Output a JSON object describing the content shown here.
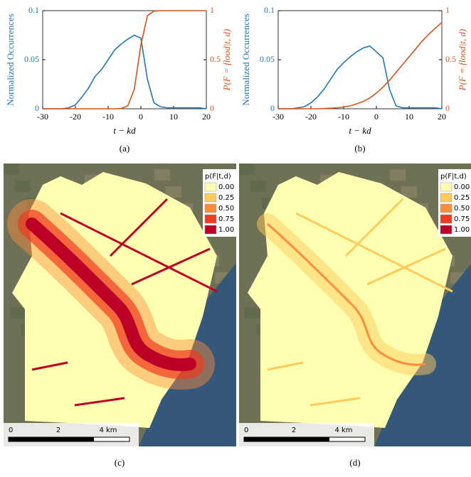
{
  "chart_data": [
    {
      "type": "line",
      "caption": "(a)",
      "xlabel": "t − kd",
      "ylabel": "Normalized Occurrences",
      "y2label": "P(F = flood|t, d)",
      "x": [
        -30,
        -28,
        -26,
        -24,
        -22,
        -20,
        -18,
        -16,
        -14,
        -12,
        -10,
        -8,
        -6,
        -4,
        -2,
        0,
        2,
        4,
        6,
        8,
        10,
        12,
        14,
        16,
        18,
        20
      ],
      "series": [
        {
          "color": "#1f77b4",
          "values": [
            0,
            0,
            0,
            0,
            0.001,
            0.004,
            0.012,
            0.021,
            0.033,
            0.04,
            0.05,
            0.06,
            0.066,
            0.071,
            0.075,
            0.072,
            0.03,
            0.006,
            0.002,
            0.001,
            0.001,
            0.001,
            0.001,
            0.001,
            0.001,
            0
          ]
        },
        {
          "color": "#d95319",
          "axis": "y2",
          "values": [
            0,
            0,
            0,
            0,
            0,
            0,
            0,
            0,
            0,
            0,
            0,
            0,
            0.003,
            0.03,
            0.2,
            0.65,
            0.95,
            0.995,
            1,
            1,
            1,
            1,
            1,
            1,
            1,
            1
          ]
        }
      ],
      "xlim": [
        -30,
        20
      ],
      "xticks": [
        -30,
        -20,
        -10,
        0,
        10,
        20
      ],
      "ylim": [
        0,
        0.1
      ],
      "yticks": [
        0,
        0.05,
        0.1
      ],
      "y2lim": [
        0,
        1
      ],
      "y2ticks": [
        0,
        0.5,
        1
      ]
    },
    {
      "type": "line",
      "caption": "(b)",
      "xlabel": "t − kd",
      "ylabel": "Normalized Occurrences",
      "y2label": "P(F = flood|t, d)",
      "x": [
        -30,
        -28,
        -26,
        -24,
        -22,
        -20,
        -18,
        -16,
        -14,
        -12,
        -10,
        -8,
        -6,
        -4,
        -2,
        0,
        2,
        4,
        6,
        8,
        10,
        12,
        14,
        16,
        18,
        20
      ],
      "series": [
        {
          "color": "#1f77b4",
          "values": [
            0,
            0,
            0,
            0.001,
            0.002,
            0.006,
            0.012,
            0.02,
            0.03,
            0.04,
            0.047,
            0.053,
            0.058,
            0.062,
            0.064,
            0.058,
            0.052,
            0.02,
            0.003,
            0.001,
            0.001,
            0.001,
            0.001,
            0.001,
            0.001,
            0
          ]
        },
        {
          "color": "#d95319",
          "axis": "y2",
          "values": [
            0,
            0,
            0,
            0,
            0,
            0,
            0,
            0.003,
            0.006,
            0.01,
            0.018,
            0.03,
            0.05,
            0.075,
            0.11,
            0.16,
            0.22,
            0.29,
            0.37,
            0.45,
            0.53,
            0.61,
            0.69,
            0.76,
            0.82,
            0.88
          ]
        }
      ],
      "xlim": [
        -30,
        20
      ],
      "xticks": [
        -30,
        -20,
        -10,
        0,
        10,
        20
      ],
      "ylim": [
        0,
        0.1
      ],
      "yticks": [
        0,
        0.05,
        0.1
      ],
      "y2lim": [
        0,
        1
      ],
      "y2ticks": [
        0,
        0.5,
        1
      ]
    }
  ],
  "maps": [
    {
      "caption": "(c)",
      "legend_title": "p(F|t,d)",
      "legend": [
        {
          "label": "0.00",
          "color": "#ffffb2"
        },
        {
          "label": "0.25",
          "color": "#fecc5c"
        },
        {
          "label": "0.50",
          "color": "#fd8d3c"
        },
        {
          "label": "0.75",
          "color": "#f03b20"
        },
        {
          "label": "1.00",
          "color": "#bd0026"
        }
      ],
      "scale_labels": [
        "0",
        "2",
        "4 km"
      ]
    },
    {
      "caption": "(d)",
      "legend_title": "p(F|t,d)",
      "legend": [
        {
          "label": "0.00",
          "color": "#ffffb2"
        },
        {
          "label": "0.25",
          "color": "#fecc5c"
        },
        {
          "label": "0.50",
          "color": "#fd8d3c"
        },
        {
          "label": "0.75",
          "color": "#f03b20"
        },
        {
          "label": "1.00",
          "color": "#bd0026"
        }
      ],
      "scale_labels": [
        "0",
        "2",
        "4 km"
      ]
    }
  ]
}
